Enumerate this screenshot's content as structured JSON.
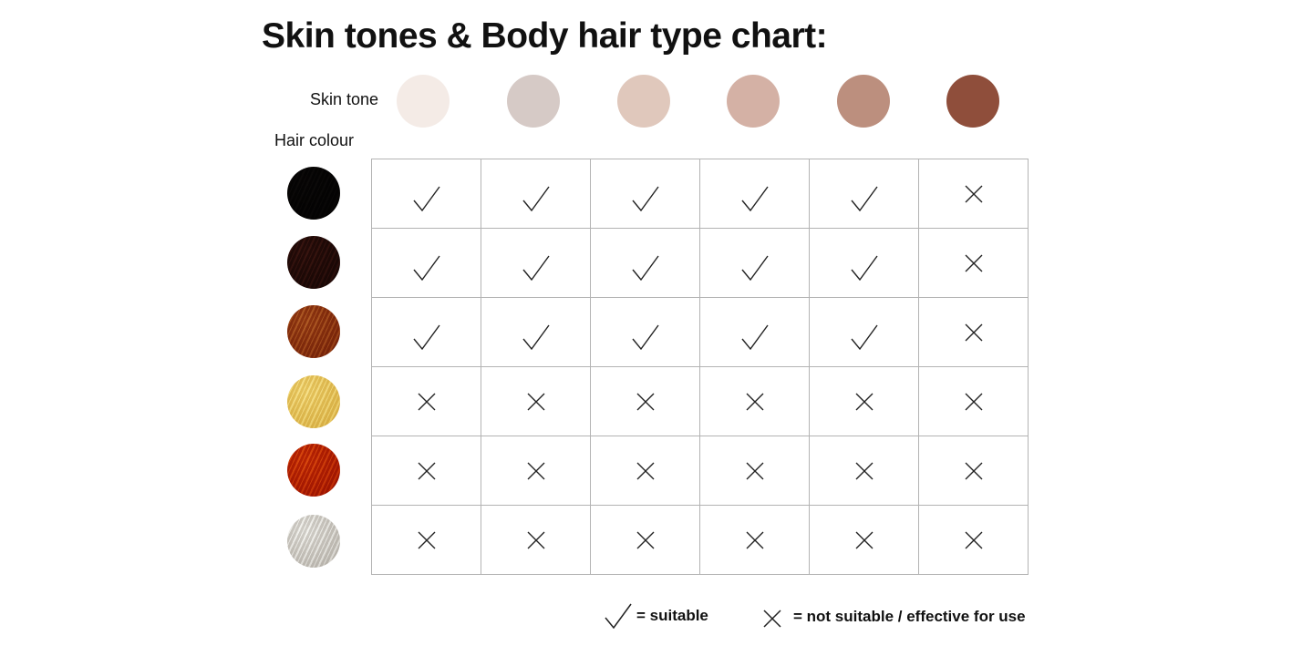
{
  "title": "Skin tones & Body hair type chart:",
  "skin_tone_label": "Skin tone",
  "hair_colour_label": "Hair colour",
  "skin_tones": [
    "#f4ebe6",
    "#d6cac6",
    "#e0c8bc",
    "#d4b1a5",
    "#bc8f7e",
    "#8f4e3b"
  ],
  "hair_colours": [
    {
      "name": "black",
      "color": "#1a1615",
      "light": "#3a3533"
    },
    {
      "name": "brown",
      "color": "#4a2721",
      "light": "#7a4a40"
    },
    {
      "name": "light brown",
      "color": "#a9582b",
      "light": "#d49a62"
    },
    {
      "name": "blonde",
      "color": "#e8cf7c",
      "light": "#fbf0bd"
    },
    {
      "name": "red",
      "color": "#c4410d",
      "light": "#ec8a3c"
    },
    {
      "name": "grey/white",
      "color": "#d4d1cc",
      "light": "#fafaf8"
    }
  ],
  "suitability": [
    [
      "check",
      "check",
      "check",
      "check",
      "check",
      "cross"
    ],
    [
      "check",
      "check",
      "check",
      "check",
      "check",
      "cross"
    ],
    [
      "check",
      "check",
      "check",
      "check",
      "check",
      "cross"
    ],
    [
      "cross",
      "cross",
      "cross",
      "cross",
      "cross",
      "cross"
    ],
    [
      "cross",
      "cross",
      "cross",
      "cross",
      "cross",
      "cross"
    ],
    [
      "cross",
      "cross",
      "cross",
      "cross",
      "cross",
      "cross"
    ]
  ],
  "legend": {
    "suitable": "= suitable",
    "not_suitable": "= not suitable / effective for use"
  }
}
